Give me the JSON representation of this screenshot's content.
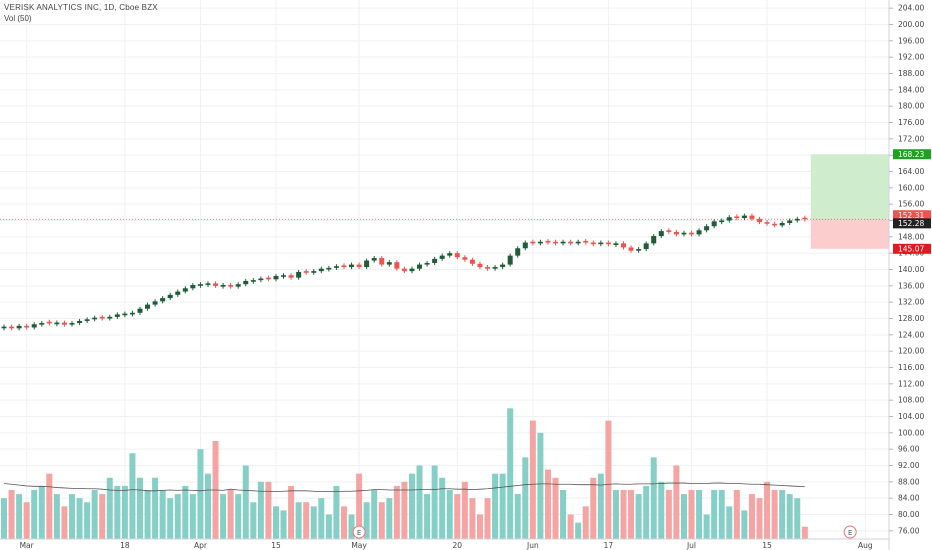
{
  "header": {
    "symbol_title": "VERISK ANALYTICS INC, 1D, Cboe BZX",
    "volume_label": "Vol (50)"
  },
  "colors": {
    "up": "#26a69a",
    "up_dark": "#1f5c38",
    "down": "#ef5350",
    "vol_up": "#86cfc7",
    "vol_down": "#f4a4a2",
    "grid": "#eef0f3",
    "target_zone": "#cfeccd",
    "stop_zone": "#fccdcd",
    "target_tag": "#21a122",
    "stop_tag": "#e2191f",
    "current_tag": "#ef5350",
    "ma_line": "#555555"
  },
  "chart_data": {
    "type": "candlestick",
    "title": "VERISK ANALYTICS INC, 1D, Cboe BZX",
    "ylim": [
      74,
      206
    ],
    "y_ticks": [
      "76.00",
      "80.00",
      "84.00",
      "88.00",
      "92.00",
      "96.00",
      "100.00",
      "104.00",
      "108.00",
      "112.00",
      "116.00",
      "120.00",
      "124.00",
      "128.00",
      "132.00",
      "136.00",
      "140.00",
      "144.00",
      "148.00",
      "152.00",
      "156.00",
      "160.00",
      "164.00",
      "168.00",
      "172.00",
      "176.00",
      "180.00",
      "184.00",
      "188.00",
      "192.00",
      "196.00",
      "200.00",
      "204.00"
    ],
    "x_labels": [
      {
        "label": "Mar",
        "index": 3
      },
      {
        "label": "18",
        "index": 16
      },
      {
        "label": "Apr",
        "index": 26
      },
      {
        "label": "15",
        "index": 36
      },
      {
        "label": "May",
        "index": 47
      },
      {
        "label": "20",
        "index": 60
      },
      {
        "label": "Jun",
        "index": 70
      },
      {
        "label": "17",
        "index": 80
      },
      {
        "label": "Jul",
        "index": 91
      },
      {
        "label": "15",
        "index": 101
      },
      {
        "label": "Aug",
        "index": 114
      }
    ],
    "price_tags": {
      "target": "168.23",
      "current_red": "152.31",
      "current": "152.28",
      "stop": "145.07"
    },
    "position": {
      "entry": 152.31,
      "target": 168.23,
      "stop": 145.07
    },
    "earnings_markers": [
      {
        "label": "E",
        "index": 47
      },
      {
        "label": "E",
        "index": 112
      }
    ],
    "closes": [
      126.0,
      125.6,
      126.2,
      125.8,
      126.6,
      126.9,
      126.8,
      127.0,
      126.5,
      126.9,
      127.4,
      127.8,
      128.2,
      128.0,
      128.4,
      129.0,
      129.2,
      129.4,
      130.4,
      131.4,
      132.2,
      133.0,
      133.8,
      134.6,
      135.4,
      136.2,
      136.4,
      136.6,
      136.0,
      136.2,
      135.8,
      136.4,
      137.2,
      137.4,
      137.8,
      137.6,
      138.4,
      138.6,
      138.0,
      139.4,
      139.2,
      139.6,
      140.2,
      140.4,
      140.8,
      140.6,
      141.2,
      140.6,
      142.2,
      142.8,
      141.2,
      141.8,
      140.2,
      139.6,
      140.2,
      141.2,
      141.6,
      142.6,
      143.4,
      144.0,
      143.0,
      142.4,
      141.4,
      140.6,
      140.2,
      140.6,
      141.2,
      143.4,
      145.2,
      146.6,
      146.4,
      146.8,
      146.6,
      146.4,
      146.8,
      146.4,
      146.8,
      146.6,
      146.2,
      146.6,
      146.2,
      146.4,
      145.4,
      144.6,
      145.0,
      146.4,
      148.2,
      149.4,
      149.2,
      148.6,
      149.0,
      148.6,
      149.6,
      150.6,
      151.8,
      152.0,
      152.8,
      152.6,
      153.2,
      152.4,
      151.6,
      151.2,
      150.8,
      151.4,
      152.0,
      152.4,
      152.28
    ],
    "volume_ma": [
      87.6,
      87.4,
      87.2,
      87.0,
      86.9,
      86.9,
      86.8,
      86.6,
      86.5,
      86.4,
      86.4,
      86.3,
      86.3,
      86.2,
      86.0,
      85.9,
      85.9,
      86.1,
      86.0,
      85.8,
      85.8,
      85.9,
      86.0,
      85.9,
      86.0,
      85.9,
      85.8,
      86.0,
      86.0,
      85.9,
      86.2,
      86.0,
      85.9,
      85.8,
      85.7,
      85.7,
      85.6,
      85.7,
      85.8,
      85.8,
      85.8,
      85.7,
      85.6,
      85.6,
      85.6,
      85.7,
      85.7,
      85.8,
      85.9,
      86.1,
      86.1,
      86.0,
      86.0,
      86.0,
      86.0,
      86.1,
      86.1,
      86.1,
      86.3,
      86.3,
      86.2,
      86.2,
      86.1,
      86.2,
      86.3,
      86.5,
      86.7,
      86.9,
      87.1,
      87.3,
      87.4,
      87.5,
      87.5,
      87.4,
      87.4,
      87.4,
      87.3,
      87.3,
      87.3,
      87.2,
      87.4,
      87.5,
      87.4,
      87.4,
      87.5,
      87.5,
      87.5,
      87.6,
      87.7,
      87.7,
      87.7,
      87.6,
      87.6,
      87.6,
      87.7,
      87.7,
      87.6,
      87.6,
      87.5,
      87.4,
      87.4,
      87.3,
      87.2,
      87.1,
      87.0,
      86.9,
      86.8
    ],
    "volumes": [
      84.0,
      86.0,
      85.0,
      83.0,
      86.0,
      87.0,
      90.0,
      85.0,
      82.0,
      85.0,
      84.0,
      83.0,
      86.0,
      85.0,
      89.0,
      87.0,
      87.0,
      95.0,
      89.0,
      86.0,
      89.0,
      86.0,
      84.0,
      85.0,
      87.0,
      85.0,
      96.0,
      90.0,
      98.0,
      85.0,
      86.0,
      85.0,
      92.0,
      83.0,
      88.0,
      88.0,
      82.0,
      81.0,
      87.0,
      83.0,
      83.0,
      82.0,
      84.0,
      80.0,
      87.0,
      82.0,
      80.0,
      90.0,
      83.0,
      86.0,
      83.0,
      84.0,
      87.0,
      88.0,
      90.0,
      92.0,
      85.0,
      92.0,
      89.0,
      86.0,
      85.0,
      88.0,
      84.0,
      80.0,
      84.0,
      90.0,
      90.0,
      106.0,
      85.0,
      94.0,
      103.0,
      100.0,
      91.0,
      89.0,
      86.0,
      80.0,
      78.0,
      82.0,
      89.0,
      90.0,
      103.0,
      86.0,
      86.0,
      86.0,
      85.0,
      87.0,
      94.0,
      88.0,
      86.0,
      92.0,
      85.0,
      86.0,
      86.0,
      80.0,
      86.0,
      86.0,
      82.0,
      86.0,
      81.0,
      85.0,
      84.0,
      88.0,
      86.0,
      86.0,
      85.0,
      84.0,
      77.0
    ],
    "up": [
      true,
      false,
      true,
      false,
      true,
      true,
      false,
      true,
      false,
      true,
      true,
      true,
      true,
      false,
      true,
      true,
      true,
      true,
      true,
      true,
      true,
      true,
      true,
      true,
      true,
      true,
      true,
      true,
      false,
      true,
      false,
      true,
      true,
      true,
      true,
      false,
      true,
      true,
      false,
      true,
      false,
      true,
      true,
      true,
      true,
      false,
      true,
      false,
      true,
      true,
      false,
      true,
      false,
      false,
      true,
      true,
      true,
      true,
      true,
      true,
      false,
      false,
      false,
      false,
      false,
      true,
      true,
      true,
      true,
      true,
      false,
      true,
      false,
      false,
      true,
      false,
      true,
      false,
      false,
      true,
      false,
      true,
      false,
      false,
      true,
      true,
      true,
      true,
      false,
      false,
      true,
      false,
      true,
      true,
      true,
      true,
      true,
      false,
      true,
      false,
      false,
      false,
      false,
      true,
      true,
      true,
      false
    ]
  }
}
